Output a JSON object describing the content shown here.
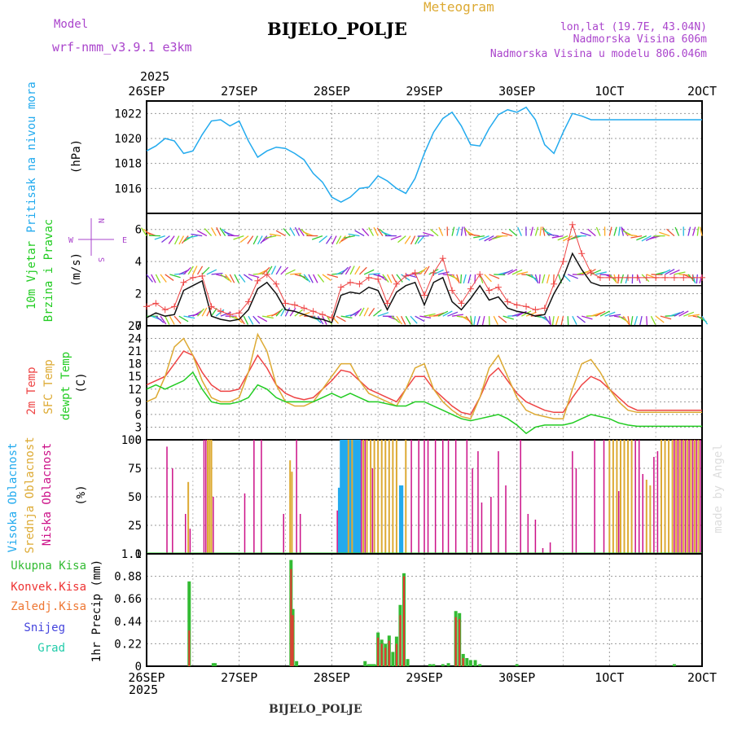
{
  "header": {
    "model_label": "Model",
    "model_name": "wrf-nmm_v3.9.1 e3km",
    "product": "Meteogram",
    "station": "BIJELO_POLJE",
    "lonlat": "lon,lat (19.7E, 43.04N)",
    "altitude": "Nadmorska Visina 606m",
    "model_altitude": "Nadmorska Visina u modelu 806.046m",
    "footer_station": "BIJELO_POLJE",
    "watermark": "made by Angel"
  },
  "time_axis": {
    "top_year": "2025",
    "bottom_year": "2025",
    "labels": [
      "26SEP",
      "27SEP",
      "28SEP",
      "29SEP",
      "30SEP",
      "1OCT",
      "2OCT"
    ]
  },
  "colors": {
    "pressure": "#22aaee",
    "t2m": "#ee4444",
    "tsfc": "#ddaa33",
    "dewpt": "#22cc22",
    "wind": "#111111",
    "gust": "#ee4444",
    "cloud_high": "#22aaee",
    "cloud_mid": "#ddaa33",
    "cloud_low": "#cc1188",
    "precip_total": "#33bb33",
    "precip_conv": "#ee3333",
    "purple": "#aa44cc",
    "orange": "#ddaa33"
  },
  "chart_data": [
    {
      "type": "line",
      "id": "pressure",
      "ylabel_1": "Pritisak na nivou mora",
      "ylabel_2": "(hPa)",
      "ylim": [
        1014,
        1023
      ],
      "yticks": [
        1016,
        1018,
        1020,
        1022
      ],
      "x_days": [
        0,
        0.1,
        0.2,
        0.3,
        0.4,
        0.5,
        0.6,
        0.7,
        0.8,
        0.9,
        1.0,
        1.1,
        1.2,
        1.3,
        1.4,
        1.5,
        1.6,
        1.7,
        1.8,
        1.9,
        2.0,
        2.1,
        2.2,
        2.3,
        2.4,
        2.5,
        2.6,
        2.7,
        2.8,
        2.9,
        3.0,
        3.1,
        3.2,
        3.3,
        3.4,
        3.5,
        3.6,
        3.7,
        3.8,
        3.9,
        4.0,
        4.1,
        4.2,
        4.3,
        4.4,
        4.5,
        4.6,
        4.7,
        4.8,
        4.9,
        5.0,
        5.1,
        5.2,
        5.3,
        5.4,
        5.5,
        5.6,
        5.7,
        5.8,
        5.9,
        6.0
      ],
      "values": [
        1019.0,
        1019.4,
        1020.0,
        1019.8,
        1018.8,
        1019.0,
        1020.3,
        1021.4,
        1021.5,
        1021.0,
        1021.4,
        1019.8,
        1018.5,
        1019.0,
        1019.3,
        1019.2,
        1018.8,
        1018.3,
        1017.2,
        1016.5,
        1015.3,
        1014.9,
        1015.3,
        1016.0,
        1016.1,
        1017.0,
        1016.6,
        1016.0,
        1015.6,
        1016.8,
        1018.8,
        1020.5,
        1021.6,
        1022.1,
        1021.0,
        1019.5,
        1019.4,
        1020.8,
        1021.9,
        1022.3,
        1022.1,
        1022.5,
        1021.5,
        1019.5,
        1018.8,
        1020.5,
        1022.0,
        1021.8,
        1021.5,
        1021.5,
        1021.5,
        1021.5,
        1021.5,
        1021.5,
        1021.5,
        1021.5,
        1021.5,
        1021.5,
        1021.5,
        1021.5,
        1021.5
      ],
      "series": [
        {
          "name": "Pritisak",
          "color_key": "pressure"
        }
      ]
    },
    {
      "type": "line",
      "id": "wind",
      "ylabel_1": "10m Vjetar",
      "ylabel_2": "Brzina i Pravac",
      "ylabel_3": "(m/s)",
      "compass": {
        "n": "N",
        "s": "S",
        "w": "W",
        "e": "E"
      },
      "ylim": [
        0,
        7
      ],
      "yticks": [
        0,
        2,
        4,
        6
      ],
      "x_days": [
        0,
        0.1,
        0.2,
        0.3,
        0.4,
        0.5,
        0.6,
        0.7,
        0.8,
        0.9,
        1.0,
        1.1,
        1.2,
        1.3,
        1.4,
        1.5,
        1.6,
        1.7,
        1.8,
        1.9,
        2.0,
        2.1,
        2.2,
        2.3,
        2.4,
        2.5,
        2.6,
        2.7,
        2.8,
        2.9,
        3.0,
        3.1,
        3.2,
        3.3,
        3.4,
        3.5,
        3.6,
        3.7,
        3.8,
        3.9,
        4.0,
        4.1,
        4.2,
        4.3,
        4.4,
        4.5,
        4.6,
        4.7,
        4.8,
        4.9,
        5.0,
        5.1,
        5.2,
        5.3,
        5.4,
        5.5,
        5.6,
        5.7,
        5.8,
        5.9,
        6.0
      ],
      "series": [
        {
          "name": "Brzina",
          "color_key": "wind",
          "values": [
            0.5,
            0.8,
            0.6,
            0.7,
            2.2,
            2.5,
            2.8,
            0.6,
            0.4,
            0.3,
            0.4,
            1.0,
            2.3,
            2.7,
            2.0,
            1.0,
            0.9,
            0.7,
            0.5,
            0.4,
            0.2,
            1.9,
            2.1,
            2.0,
            2.4,
            2.2,
            1.0,
            2.1,
            2.5,
            2.7,
            1.3,
            2.7,
            3.0,
            1.5,
            1.0,
            1.7,
            2.5,
            1.6,
            1.8,
            1.1,
            0.9,
            0.8,
            0.6,
            0.7,
            2.0,
            3.0,
            4.5,
            3.5,
            2.7,
            2.5,
            2.5,
            2.5,
            2.5,
            2.5,
            2.5,
            2.5,
            2.5,
            2.5,
            2.5,
            2.5,
            2.5
          ]
        },
        {
          "name": "Udar",
          "color_key": "gust",
          "values": [
            1.2,
            1.4,
            1.0,
            1.2,
            2.7,
            3.0,
            3.1,
            1.2,
            0.9,
            0.7,
            0.8,
            1.5,
            2.8,
            3.2,
            2.6,
            1.4,
            1.3,
            1.1,
            0.9,
            0.7,
            0.5,
            2.4,
            2.7,
            2.6,
            3.0,
            2.9,
            1.4,
            2.6,
            3.1,
            3.3,
            1.9,
            3.3,
            4.2,
            2.2,
            1.4,
            2.3,
            3.2,
            2.2,
            2.4,
            1.5,
            1.3,
            1.2,
            1.0,
            1.1,
            2.6,
            4.0,
            6.3,
            4.5,
            3.3,
            3.0,
            3.0,
            3.0,
            3.0,
            3.0,
            3.0,
            3.0,
            3.0,
            3.0,
            3.0,
            3.0,
            3.0
          ]
        }
      ],
      "barb_rows": [
        0.6,
        3.2,
        5.6
      ]
    },
    {
      "type": "line",
      "id": "temperature",
      "ylabel_1": "2m Temp",
      "ylabel_2": "SFC Temp",
      "ylabel_3": "dewpt Temp",
      "ylabel_4": "(C)",
      "ylim": [
        0,
        27
      ],
      "yticks": [
        0,
        3,
        6,
        9,
        12,
        15,
        18,
        21,
        24,
        27
      ],
      "x_days": [
        0,
        0.1,
        0.2,
        0.3,
        0.4,
        0.5,
        0.6,
        0.7,
        0.8,
        0.9,
        1.0,
        1.1,
        1.2,
        1.3,
        1.4,
        1.5,
        1.6,
        1.7,
        1.8,
        1.9,
        2.0,
        2.1,
        2.2,
        2.3,
        2.4,
        2.5,
        2.6,
        2.7,
        2.8,
        2.9,
        3.0,
        3.1,
        3.2,
        3.3,
        3.4,
        3.5,
        3.6,
        3.7,
        3.8,
        3.9,
        4.0,
        4.1,
        4.2,
        4.3,
        4.4,
        4.5,
        4.6,
        4.7,
        4.8,
        4.9,
        5.0,
        5.1,
        5.2,
        5.3,
        5.4,
        5.5,
        5.6,
        5.7,
        5.8,
        5.9,
        6.0
      ],
      "series": [
        {
          "name": "2m Temp",
          "color_key": "t2m",
          "values": [
            13,
            14,
            15,
            18,
            21,
            20,
            16,
            13,
            11.5,
            11.5,
            12,
            16,
            20,
            17,
            13,
            11,
            10,
            9.5,
            10,
            12,
            14,
            16.5,
            16,
            14,
            12,
            11,
            10,
            9,
            12,
            15,
            15,
            12,
            10,
            8,
            6.5,
            6,
            10,
            15,
            17,
            14,
            11,
            9,
            8,
            7,
            6.5,
            6.5,
            10,
            13,
            15,
            14,
            12,
            10,
            8,
            7,
            7,
            7,
            7,
            7,
            7,
            7,
            7
          ]
        },
        {
          "name": "SFC Temp",
          "color_key": "tsfc",
          "values": [
            9,
            10,
            15,
            22,
            24,
            20,
            14,
            10,
            9,
            9,
            10,
            16,
            25,
            21,
            13,
            9,
            8,
            8,
            9,
            12,
            15,
            18,
            18,
            14,
            11,
            10,
            9,
            8,
            12,
            17,
            18,
            12,
            9,
            7,
            5.5,
            5,
            10,
            17,
            20,
            15,
            10,
            7,
            6,
            5.5,
            5,
            5,
            12,
            18,
            19,
            16,
            12,
            9,
            7,
            6.5,
            6.5,
            6.5,
            6.5,
            6.5,
            6.5,
            6.5,
            6.5
          ]
        },
        {
          "name": "dewpt Temp",
          "color_key": "dewpt",
          "values": [
            12,
            13,
            12,
            13,
            14,
            16,
            12,
            9,
            8.5,
            8.5,
            9,
            10,
            13,
            12,
            10,
            9,
            9,
            9,
            9,
            10,
            11,
            10,
            11,
            10,
            9,
            9,
            8.5,
            8,
            8,
            9,
            9,
            8,
            7,
            6,
            5,
            4.5,
            5,
            5.5,
            6,
            5,
            3.5,
            1.5,
            3,
            3.5,
            3.5,
            3.5,
            4,
            5,
            6,
            5.5,
            5,
            4,
            3.5,
            3.2,
            3.2,
            3.2,
            3.2,
            3.2,
            3.2,
            3.2,
            3.2
          ]
        }
      ]
    },
    {
      "type": "bar",
      "id": "clouds",
      "ylabel_1": "Visoka Oblacnost",
      "ylabel_2": "Srednja Oblacnost",
      "ylabel_3": "Niska Oblacnost",
      "ylabel_4": "(%)",
      "ylim": [
        0,
        100
      ],
      "yticks": [
        0,
        25,
        50,
        75,
        100
      ],
      "series": [
        {
          "name": "Visoka",
          "color_key": "cloud_high",
          "x_days": [
            2.08,
            2.1,
            2.12,
            2.14,
            2.16,
            2.2,
            2.24,
            2.26,
            2.28,
            2.3,
            2.74,
            2.76
          ],
          "values": [
            58,
            100,
            100,
            100,
            100,
            100,
            100,
            100,
            100,
            100,
            60,
            60
          ]
        },
        {
          "name": "Srednja",
          "color_key": "cloud_mid",
          "x_days": [
            0.45,
            0.66,
            0.68,
            0.7,
            1.55,
            1.57,
            2.18,
            2.22,
            2.34,
            2.38,
            2.42,
            2.46,
            2.5,
            2.54,
            2.58,
            2.62,
            2.66,
            2.7,
            2.8,
            5.0,
            5.04,
            5.08,
            5.12,
            5.16,
            5.2,
            5.24,
            5.4,
            5.44,
            5.56,
            5.6,
            5.64,
            5.68,
            5.72,
            5.76,
            5.8,
            5.84,
            5.88,
            5.92,
            5.96
          ],
          "values": [
            63,
            100,
            100,
            100,
            82,
            72,
            100,
            100,
            100,
            100,
            100,
            100,
            100,
            100,
            100,
            100,
            100,
            100,
            100,
            100,
            100,
            100,
            100,
            100,
            100,
            100,
            65,
            60,
            100,
            100,
            100,
            100,
            100,
            100,
            100,
            100,
            100,
            100,
            100
          ]
        },
        {
          "name": "Niska",
          "color_key": "cloud_low",
          "x_days": [
            0.22,
            0.28,
            0.42,
            0.47,
            0.62,
            0.64,
            0.72,
            1.06,
            1.16,
            1.24,
            1.48,
            1.62,
            1.66,
            2.06,
            2.32,
            2.36,
            2.44,
            2.86,
            2.94,
            3.0,
            3.04,
            3.12,
            3.2,
            3.26,
            3.34,
            3.46,
            3.52,
            3.58,
            3.62,
            3.72,
            3.8,
            3.88,
            4.04,
            4.12,
            4.2,
            4.28,
            4.36,
            4.6,
            4.64,
            4.84,
            4.94,
            5.1,
            5.28,
            5.32,
            5.36,
            5.48,
            5.52,
            5.7,
            5.74,
            5.78,
            5.82,
            5.86,
            5.9,
            5.94,
            5.98
          ],
          "values": [
            94,
            75,
            35,
            22,
            100,
            100,
            50,
            53,
            100,
            100,
            35,
            100,
            35,
            38,
            100,
            100,
            75,
            100,
            100,
            100,
            100,
            100,
            100,
            100,
            100,
            100,
            75,
            90,
            45,
            50,
            90,
            60,
            100,
            35,
            30,
            5,
            10,
            90,
            75,
            100,
            100,
            55,
            100,
            100,
            70,
            85,
            90,
            100,
            100,
            100,
            100,
            100,
            100,
            100,
            100
          ]
        }
      ]
    },
    {
      "type": "bar",
      "id": "precip",
      "legend": [
        "Ukupna Kisa",
        "Konvek.Kisa",
        "Zaledj.Kisa",
        "Snijeg",
        "Grad"
      ],
      "ylabel_1": "1hr Precip (mm)",
      "ylim": [
        0,
        1.1
      ],
      "yticks": [
        0,
        0.22,
        0.44,
        0.66,
        0.88,
        1.1
      ],
      "ytick_labels": [
        "0",
        "0.22",
        "0.44",
        "0.66",
        "0.88",
        "1.1"
      ],
      "series": [
        {
          "name": "Ukupna Kisa",
          "color_key": "precip_total",
          "x_days": [
            0.46,
            0.72,
            0.74,
            1.56,
            1.58,
            1.62,
            2.36,
            2.4,
            2.43,
            2.46,
            2.5,
            2.54,
            2.58,
            2.62,
            2.66,
            2.7,
            2.74,
            2.78,
            2.82,
            3.06,
            3.1,
            3.2,
            3.26,
            3.34,
            3.38,
            3.42,
            3.46,
            3.5,
            3.55,
            3.6,
            4.0,
            5.7
          ],
          "values": [
            0.83,
            0.03,
            0.03,
            1.04,
            0.56,
            0.05,
            0.05,
            0.02,
            0.02,
            0.02,
            0.33,
            0.26,
            0.22,
            0.3,
            0.14,
            0.29,
            0.6,
            0.91,
            0.07,
            0.02,
            0.02,
            0.02,
            0.03,
            0.54,
            0.52,
            0.12,
            0.08,
            0.06,
            0.06,
            0.02,
            0.02,
            0.02
          ]
        },
        {
          "name": "Konvek.Kisa",
          "color_key": "precip_conv",
          "x_days": [
            0.46,
            1.56,
            1.58,
            2.5,
            2.54,
            2.58,
            2.62,
            2.7,
            2.74,
            2.78,
            3.34,
            3.38,
            3.42
          ],
          "values": [
            0.35,
            0.95,
            0.5,
            0.28,
            0.22,
            0.18,
            0.25,
            0.22,
            0.5,
            0.88,
            0.48,
            0.46,
            0.08
          ]
        }
      ]
    }
  ]
}
